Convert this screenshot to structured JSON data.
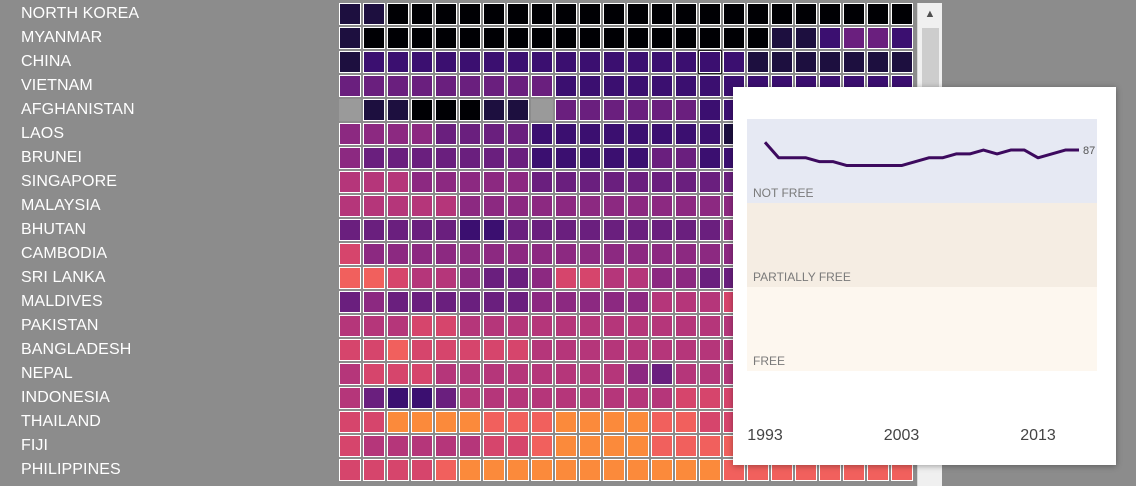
{
  "chart_data": {
    "type": "heatmap",
    "rows": [
      "NORTH KOREA",
      "MYANMAR",
      "CHINA",
      "VIETNAM",
      "AFGHANISTAN",
      "LAOS",
      "BRUNEI",
      "SINGAPORE",
      "MALAYSIA",
      "BHUTAN",
      "CAMBODIA",
      "SRI LANKA",
      "MALDIVES",
      "PAKISTAN",
      "BANGLADESH",
      "NEPAL",
      "INDONESIA",
      "THAILAND",
      "FIJI",
      "PHILIPPINES"
    ],
    "colorscale": [
      "#000004",
      "#1d0f3f",
      "#3b0f70",
      "#6a1f7e",
      "#8c2981",
      "#b5367a",
      "#d6456c",
      "#f1605d",
      "#fb8a3b",
      "#feb236"
    ],
    "missing_color": "#9a9a9a",
    "values": [
      [
        1,
        1,
        0,
        0,
        0,
        0,
        0,
        0,
        0,
        0,
        0,
        0,
        0,
        0,
        0,
        0,
        0,
        0,
        0,
        0,
        0,
        0,
        0,
        0
      ],
      [
        1,
        0,
        0,
        0,
        0,
        0,
        0,
        0,
        0,
        0,
        0,
        0,
        0,
        0,
        0,
        0,
        0,
        0,
        1,
        1,
        2,
        3,
        3,
        2
      ],
      [
        1,
        2,
        2,
        2,
        2,
        2,
        2,
        2,
        2,
        2,
        2,
        2,
        2,
        2,
        2,
        2,
        2,
        1,
        1,
        1,
        1,
        1,
        1,
        1
      ],
      [
        3,
        3,
        3,
        3,
        3,
        3,
        3,
        3,
        3,
        2,
        2,
        2,
        2,
        2,
        2,
        2,
        2,
        2,
        2,
        2,
        2,
        2,
        2,
        2
      ],
      [
        null,
        1,
        1,
        0,
        0,
        0,
        1,
        1,
        null,
        3,
        3,
        3,
        3,
        3,
        3,
        2,
        2,
        2,
        2,
        2,
        2,
        2,
        2,
        2
      ],
      [
        4,
        4,
        4,
        4,
        3,
        3,
        3,
        3,
        2,
        2,
        2,
        2,
        2,
        2,
        2,
        2,
        1,
        1,
        2,
        2,
        2,
        2,
        2,
        2
      ],
      [
        4,
        3,
        3,
        3,
        3,
        3,
        3,
        3,
        2,
        2,
        2,
        2,
        2,
        3,
        3,
        2,
        2,
        2,
        2,
        2,
        2,
        2,
        2,
        2
      ],
      [
        5,
        5,
        5,
        4,
        4,
        4,
        4,
        4,
        3,
        3,
        3,
        3,
        3,
        3,
        3,
        3,
        3,
        3,
        3,
        3,
        3,
        3,
        3,
        3
      ],
      [
        5,
        5,
        5,
        5,
        5,
        4,
        4,
        4,
        4,
        4,
        4,
        4,
        4,
        4,
        4,
        4,
        4,
        3,
        3,
        3,
        3,
        3,
        3,
        3
      ],
      [
        3,
        3,
        3,
        3,
        3,
        2,
        2,
        3,
        3,
        3,
        3,
        3,
        3,
        3,
        3,
        3,
        4,
        4,
        4,
        4,
        4,
        4,
        4,
        4
      ],
      [
        6,
        4,
        4,
        4,
        4,
        4,
        4,
        4,
        4,
        4,
        4,
        4,
        4,
        4,
        4,
        4,
        4,
        4,
        4,
        4,
        4,
        4,
        4,
        4
      ],
      [
        7,
        7,
        6,
        5,
        5,
        4,
        3,
        3,
        4,
        6,
        6,
        5,
        5,
        4,
        4,
        3,
        3,
        4,
        4,
        4,
        4,
        4,
        4,
        4
      ],
      [
        3,
        4,
        3,
        3,
        3,
        3,
        3,
        3,
        4,
        4,
        4,
        4,
        4,
        5,
        5,
        5,
        6,
        6,
        5,
        5,
        5,
        5,
        5,
        5
      ],
      [
        5,
        5,
        5,
        6,
        6,
        5,
        5,
        5,
        5,
        5,
        5,
        5,
        5,
        5,
        5,
        5,
        5,
        5,
        5,
        5,
        5,
        5,
        5,
        5
      ],
      [
        6,
        6,
        7,
        6,
        6,
        6,
        6,
        6,
        5,
        5,
        5,
        5,
        5,
        5,
        5,
        5,
        5,
        5,
        5,
        5,
        5,
        5,
        5,
        5
      ],
      [
        5,
        6,
        6,
        6,
        5,
        5,
        5,
        5,
        5,
        5,
        5,
        5,
        4,
        3,
        5,
        5,
        5,
        5,
        5,
        5,
        5,
        5,
        5,
        5
      ],
      [
        5,
        3,
        2,
        2,
        3,
        5,
        5,
        5,
        5,
        5,
        5,
        5,
        5,
        5,
        6,
        6,
        6,
        6,
        6,
        6,
        6,
        6,
        6,
        6
      ],
      [
        6,
        6,
        8,
        8,
        8,
        8,
        7,
        7,
        7,
        8,
        8,
        8,
        8,
        7,
        7,
        6,
        6,
        6,
        6,
        6,
        6,
        6,
        6,
        6
      ],
      [
        6,
        5,
        5,
        5,
        5,
        5,
        6,
        6,
        7,
        8,
        8,
        8,
        8,
        7,
        7,
        7,
        7,
        7,
        7,
        7,
        7,
        7,
        7,
        7
      ],
      [
        6,
        6,
        6,
        6,
        7,
        8,
        8,
        8,
        8,
        8,
        8,
        8,
        8,
        8,
        8,
        8,
        7,
        7,
        7,
        7,
        7,
        7,
        7,
        7
      ]
    ],
    "highlight": {
      "row": "CHINA",
      "column_index": 15
    },
    "tooltip": {
      "type": "line",
      "country": "CHINA",
      "x": [
        1993,
        1994,
        1995,
        1996,
        1997,
        1998,
        1999,
        2000,
        2001,
        2002,
        2003,
        2004,
        2005,
        2006,
        2007,
        2008,
        2009,
        2010,
        2011,
        2012,
        2013,
        2014,
        2015,
        2016
      ],
      "y": [
        89,
        85,
        85,
        85,
        84,
        84,
        83,
        83,
        83,
        83,
        83,
        84,
        85,
        85,
        86,
        86,
        87,
        86,
        87,
        87,
        85,
        86,
        87,
        87
      ],
      "xlim": [
        1993,
        2016
      ],
      "ylim": [
        30,
        95
      ],
      "end_label": "87",
      "bands": [
        {
          "label": "NOT FREE",
          "color": "#e6e9f3"
        },
        {
          "label": "PARTIALLY FREE",
          "color": "#f5ede3"
        },
        {
          "label": "FREE",
          "color": "#fdf7ef"
        }
      ],
      "xtick_labels": [
        "1993",
        "2003",
        "2013"
      ],
      "line_color": "#3d0a5e"
    }
  },
  "scrollbar": {
    "up_arrow_glyph": "▲"
  }
}
